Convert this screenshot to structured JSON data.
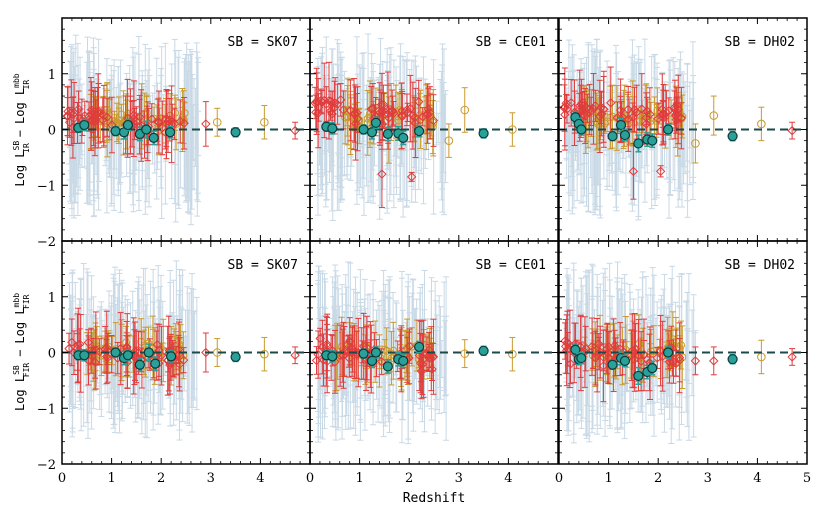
{
  "chart_data": {
    "type": "scatter",
    "xlabel": "Redshift",
    "xlim": [
      0,
      5
    ],
    "ylim": [
      -2,
      2
    ],
    "xticks": [
      "0",
      "1",
      "2",
      "3",
      "4",
      "5"
    ],
    "yticks": [
      "−2",
      "−1",
      "0",
      "1"
    ],
    "rows": [
      {
        "ylabel_main": "Log L",
        "ylabel_sup1": "SB",
        "ylabel_sub1": "IR",
        "ylabel_minus": "−",
        "ylabel_log2": "Log L",
        "ylabel_sup2": "mbb",
        "ylabel_sub2": "IR"
      },
      {
        "ylabel_main": "Log L",
        "ylabel_sup1": "SB",
        "ylabel_sub1": "FIR",
        "ylabel_minus": "−",
        "ylabel_log2": "Log L",
        "ylabel_sup2": "mbb",
        "ylabel_sub2": "FIR"
      }
    ],
    "columns": [
      {
        "label": "SB = SK07"
      },
      {
        "label": "SB = CE01"
      },
      {
        "label": "SB = DH02"
      }
    ],
    "reference_line": {
      "y": 0,
      "style": "dashed",
      "color": "#1a4a4a"
    },
    "series_colors": {
      "background": "#c9d9e6",
      "red_diamonds": "#e03c3c",
      "gold_circles": "#c99a2e",
      "teal_mean": "#2aa198",
      "teal_mean_edge": "#0b3b3b"
    },
    "panels": [
      {
        "row": 0,
        "col": 0,
        "means": [
          {
            "x": 0.33,
            "y": 0.03,
            "err": 0.08
          },
          {
            "x": 0.45,
            "y": 0.08,
            "err": 0.1
          },
          {
            "x": 1.08,
            "y": -0.03,
            "err": 0.08
          },
          {
            "x": 1.25,
            "y": -0.05,
            "err": 0.12
          },
          {
            "x": 1.33,
            "y": 0.08,
            "err": 0.1
          },
          {
            "x": 1.57,
            "y": -0.08,
            "err": 0.12
          },
          {
            "x": 1.7,
            "y": 0.0,
            "err": 0.15
          },
          {
            "x": 1.85,
            "y": -0.15,
            "err": 0.12
          },
          {
            "x": 2.18,
            "y": -0.05,
            "err": 0.1
          },
          {
            "x": 3.5,
            "y": -0.05,
            "err": 0.08
          }
        ],
        "outliers": [
          {
            "x": 3.13,
            "y": 0.13,
            "err": 0.25,
            "kind": "gold"
          },
          {
            "x": 4.08,
            "y": 0.13,
            "err": 0.3,
            "kind": "gold"
          },
          {
            "x": 4.7,
            "y": -0.02,
            "err": 0.15,
            "kind": "red"
          },
          {
            "x": 2.9,
            "y": 0.1,
            "err": 0.4,
            "kind": "red"
          }
        ]
      },
      {
        "row": 0,
        "col": 1,
        "means": [
          {
            "x": 0.33,
            "y": 0.05,
            "err": 0.08
          },
          {
            "x": 0.45,
            "y": 0.02,
            "err": 0.1
          },
          {
            "x": 1.08,
            "y": 0.0,
            "err": 0.08
          },
          {
            "x": 1.25,
            "y": -0.05,
            "err": 0.12
          },
          {
            "x": 1.33,
            "y": 0.12,
            "err": 0.1
          },
          {
            "x": 1.57,
            "y": -0.08,
            "err": 0.12
          },
          {
            "x": 1.78,
            "y": -0.07,
            "err": 0.12
          },
          {
            "x": 1.88,
            "y": -0.15,
            "err": 0.12
          },
          {
            "x": 2.2,
            "y": -0.03,
            "err": 0.1
          },
          {
            "x": 3.5,
            "y": -0.07,
            "err": 0.08
          }
        ],
        "outliers": [
          {
            "x": 2.8,
            "y": -0.2,
            "err": 0.3,
            "kind": "gold"
          },
          {
            "x": 3.12,
            "y": 0.35,
            "err": 0.4,
            "kind": "gold"
          },
          {
            "x": 4.08,
            "y": 0.0,
            "err": 0.3,
            "kind": "gold"
          },
          {
            "x": 1.45,
            "y": -0.8,
            "err": 0.6,
            "kind": "red"
          },
          {
            "x": 2.05,
            "y": -0.85,
            "err": 0.08,
            "kind": "red"
          }
        ]
      },
      {
        "row": 0,
        "col": 2,
        "means": [
          {
            "x": 0.33,
            "y": 0.22,
            "err": 0.1
          },
          {
            "x": 0.4,
            "y": 0.1,
            "err": 0.1
          },
          {
            "x": 0.45,
            "y": 0.0,
            "err": 0.1
          },
          {
            "x": 1.08,
            "y": -0.12,
            "err": 0.08
          },
          {
            "x": 1.25,
            "y": 0.08,
            "err": 0.12
          },
          {
            "x": 1.33,
            "y": -0.1,
            "err": 0.1
          },
          {
            "x": 1.6,
            "y": -0.25,
            "err": 0.15
          },
          {
            "x": 1.78,
            "y": -0.18,
            "err": 0.12
          },
          {
            "x": 1.88,
            "y": -0.2,
            "err": 0.12
          },
          {
            "x": 2.2,
            "y": 0.0,
            "err": 0.1
          },
          {
            "x": 3.5,
            "y": -0.12,
            "err": 0.08
          }
        ],
        "outliers": [
          {
            "x": 2.75,
            "y": -0.25,
            "err": 0.35,
            "kind": "gold"
          },
          {
            "x": 3.12,
            "y": 0.25,
            "err": 0.35,
            "kind": "gold"
          },
          {
            "x": 4.08,
            "y": 0.1,
            "err": 0.3,
            "kind": "gold"
          },
          {
            "x": 4.7,
            "y": -0.02,
            "err": 0.15,
            "kind": "red"
          },
          {
            "x": 1.5,
            "y": -0.75,
            "err": 0.5,
            "kind": "red"
          },
          {
            "x": 2.05,
            "y": -0.75,
            "err": 0.1,
            "kind": "red"
          }
        ]
      },
      {
        "row": 1,
        "col": 0,
        "means": [
          {
            "x": 0.33,
            "y": -0.05,
            "err": 0.08
          },
          {
            "x": 0.45,
            "y": -0.05,
            "err": 0.1
          },
          {
            "x": 1.08,
            "y": 0.0,
            "err": 0.08
          },
          {
            "x": 1.25,
            "y": -0.1,
            "err": 0.12
          },
          {
            "x": 1.33,
            "y": -0.05,
            "err": 0.1
          },
          {
            "x": 1.57,
            "y": -0.22,
            "err": 0.12
          },
          {
            "x": 1.75,
            "y": 0.0,
            "err": 0.15
          },
          {
            "x": 1.88,
            "y": -0.2,
            "err": 0.12
          },
          {
            "x": 2.2,
            "y": -0.07,
            "err": 0.1
          },
          {
            "x": 3.5,
            "y": -0.08,
            "err": 0.08
          }
        ],
        "outliers": [
          {
            "x": 3.13,
            "y": 0.0,
            "err": 0.25,
            "kind": "gold"
          },
          {
            "x": 4.08,
            "y": -0.03,
            "err": 0.3,
            "kind": "gold"
          },
          {
            "x": 4.7,
            "y": -0.05,
            "err": 0.15,
            "kind": "red"
          },
          {
            "x": 2.9,
            "y": 0.0,
            "err": 0.35,
            "kind": "red"
          }
        ]
      },
      {
        "row": 1,
        "col": 1,
        "means": [
          {
            "x": 0.33,
            "y": -0.05,
            "err": 0.08
          },
          {
            "x": 0.45,
            "y": -0.07,
            "err": 0.1
          },
          {
            "x": 1.08,
            "y": -0.02,
            "err": 0.08
          },
          {
            "x": 1.25,
            "y": -0.15,
            "err": 0.12
          },
          {
            "x": 1.33,
            "y": 0.0,
            "err": 0.1
          },
          {
            "x": 1.57,
            "y": -0.25,
            "err": 0.12
          },
          {
            "x": 1.78,
            "y": -0.12,
            "err": 0.12
          },
          {
            "x": 1.88,
            "y": -0.15,
            "err": 0.12
          },
          {
            "x": 2.2,
            "y": 0.1,
            "err": 0.1
          },
          {
            "x": 3.5,
            "y": 0.03,
            "err": 0.08
          }
        ],
        "outliers": [
          {
            "x": 3.12,
            "y": -0.02,
            "err": 0.25,
            "kind": "gold"
          },
          {
            "x": 4.08,
            "y": -0.03,
            "err": 0.3,
            "kind": "gold"
          }
        ]
      },
      {
        "row": 1,
        "col": 2,
        "means": [
          {
            "x": 0.33,
            "y": 0.05,
            "err": 0.1
          },
          {
            "x": 0.4,
            "y": -0.12,
            "err": 0.1
          },
          {
            "x": 0.45,
            "y": -0.1,
            "err": 0.1
          },
          {
            "x": 1.08,
            "y": -0.22,
            "err": 0.08
          },
          {
            "x": 1.25,
            "y": -0.1,
            "err": 0.12
          },
          {
            "x": 1.33,
            "y": -0.15,
            "err": 0.1
          },
          {
            "x": 1.6,
            "y": -0.42,
            "err": 0.15
          },
          {
            "x": 1.78,
            "y": -0.35,
            "err": 0.12
          },
          {
            "x": 1.88,
            "y": -0.28,
            "err": 0.12
          },
          {
            "x": 2.2,
            "y": 0.0,
            "err": 0.1
          },
          {
            "x": 3.5,
            "y": -0.12,
            "err": 0.08
          }
        ],
        "outliers": [
          {
            "x": 2.75,
            "y": -0.15,
            "err": 0.25,
            "kind": "red"
          },
          {
            "x": 3.12,
            "y": -0.15,
            "err": 0.25,
            "kind": "red"
          },
          {
            "x": 4.08,
            "y": -0.08,
            "err": 0.3,
            "kind": "gold"
          },
          {
            "x": 4.7,
            "y": -0.08,
            "err": 0.15,
            "kind": "red"
          }
        ]
      }
    ]
  }
}
